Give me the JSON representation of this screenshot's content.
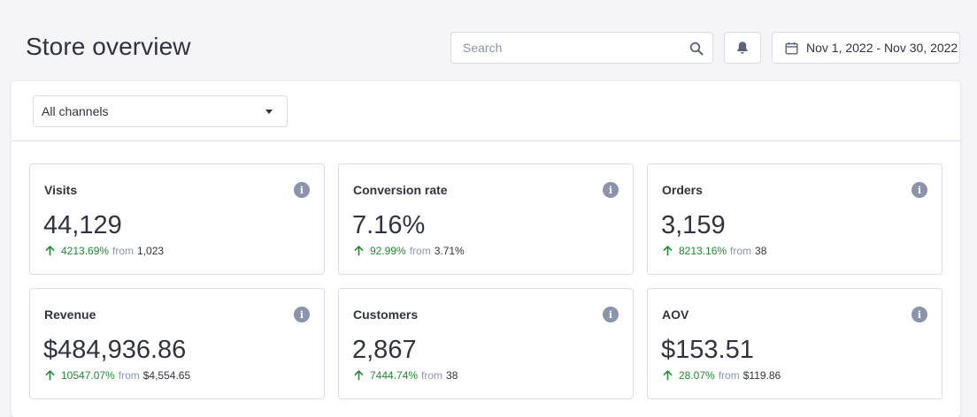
{
  "header": {
    "title": "Store overview",
    "search": {
      "placeholder": "Search",
      "value": ""
    },
    "search_icon": "search-icon",
    "bell_icon": "bell-icon",
    "date_range": {
      "icon": "calendar-icon",
      "label": "Nov 1, 2022 - Nov 30, 2022"
    }
  },
  "filter": {
    "channel": {
      "selected": "All channels",
      "icon": "caret-down-icon"
    }
  },
  "colors": {
    "positive": "#208831",
    "muted": "#8c93ad",
    "text": "#313440",
    "border": "#d9dce9"
  },
  "cards": [
    {
      "title": "Visits",
      "value": "44,129",
      "delta": "4213.69%",
      "from": "from",
      "previous": "1,023"
    },
    {
      "title": "Conversion rate",
      "value": "7.16%",
      "delta": "92.99%",
      "from": "from",
      "previous": "3.71%"
    },
    {
      "title": "Orders",
      "value": "3,159",
      "delta": "8213.16%",
      "from": "from",
      "previous": "38"
    },
    {
      "title": "Revenue",
      "value": "$484,936.86",
      "delta": "10547.07%",
      "from": "from",
      "previous": "$4,554.65"
    },
    {
      "title": "Customers",
      "value": "2,867",
      "delta": "7444.74%",
      "from": "from",
      "previous": "38"
    },
    {
      "title": "AOV",
      "value": "$153.51",
      "delta": "28.07%",
      "from": "from",
      "previous": "$119.86"
    }
  ]
}
